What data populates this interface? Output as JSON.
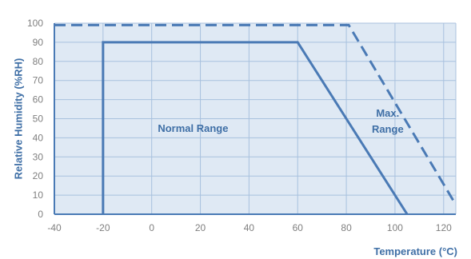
{
  "chart_data": {
    "type": "line",
    "title": "",
    "xlabel": "Temperature (°C)",
    "ylabel": "Relative Humidity  (%RH)",
    "xlim": [
      -40,
      125
    ],
    "ylim": [
      0,
      100
    ],
    "xticks": [
      -40,
      -20,
      0,
      20,
      40,
      60,
      80,
      100,
      120
    ],
    "yticks": [
      0,
      10,
      20,
      30,
      40,
      50,
      60,
      70,
      80,
      90,
      100
    ],
    "grid": true,
    "series": [
      {
        "label": "Normal Range",
        "style": "solid",
        "points": [
          [
            -20,
            0
          ],
          [
            -20,
            90
          ],
          [
            60,
            90
          ],
          [
            105,
            0
          ]
        ]
      },
      {
        "label": "Max.\nRange",
        "style": "dashed",
        "points": [
          [
            -40,
            99
          ],
          [
            81,
            99
          ],
          [
            125,
            5
          ]
        ]
      }
    ],
    "colors": {
      "plot_background": "#dfe9f4",
      "line": "#4a7ab5",
      "grid": "#a8c1de",
      "tick_text": "#7f7f7f",
      "axis_title": "#3f6fa6"
    }
  }
}
